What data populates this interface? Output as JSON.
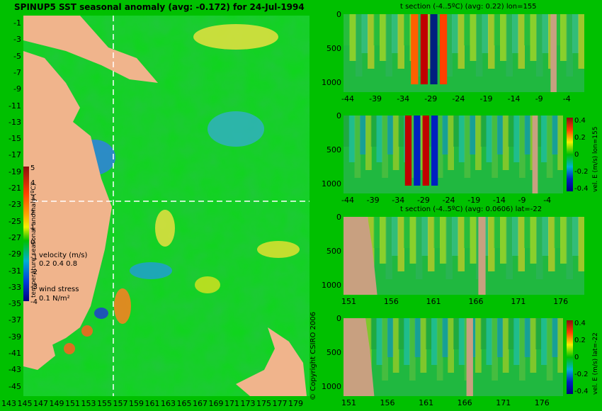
{
  "map": {
    "title": "SPINUP5 SST seasonal anomaly (avg: -0.172) for 24-Jul-1994",
    "lat_labels": [
      "-1",
      "-3",
      "-5",
      "-7",
      "-9",
      "-11",
      "-13",
      "-15",
      "-17",
      "-19",
      "-21",
      "-23",
      "-25",
      "-27",
      "-29",
      "-31",
      "-33",
      "-35",
      "-37",
      "-39",
      "-41",
      "-43",
      "-45"
    ],
    "lon_labels": [
      "143",
      "145",
      "147",
      "149",
      "151",
      "153",
      "155",
      "157",
      "159",
      "161",
      "163",
      "165",
      "167",
      "169",
      "171",
      "173",
      "175",
      "177",
      "179"
    ],
    "colorbar_ticks": [
      "5",
      "4",
      "3",
      "2",
      "1",
      "0",
      "-1",
      "-2",
      "-3",
      "-4"
    ],
    "colorbar_label": "temperature seasonal anomaly (ºC)",
    "velocity_label": "velocity (m/s)",
    "velocity_scale": "0.2 0.4 0.8",
    "wind_label": "wind stress",
    "wind_scale": "0.1 N/m²",
    "copyright": "© Copyright CSIRO 2006",
    "colors": {
      "land": "#f0b48c",
      "background": "#00c000",
      "crosshair": "#ffffff",
      "vector": "#ff00ff"
    }
  },
  "panels": [
    {
      "title": "t section (-4..5ºC) (avg: 0.22) lon=155",
      "xticks": [
        "-44",
        "-39",
        "-34",
        "-29",
        "-24",
        "-19",
        "-14",
        "-9",
        "-4"
      ],
      "yticks": [
        "0",
        "500",
        "1000"
      ]
    },
    {
      "title": "",
      "xticks": [
        "-44",
        "-39",
        "-34",
        "-29",
        "-24",
        "-19",
        "-14",
        "-9",
        "-4"
      ],
      "yticks": [
        "0",
        "500",
        "1000"
      ],
      "cb_ticks": [
        "0.4",
        "0.2",
        "0",
        "-0.2",
        "-0.4"
      ],
      "cb_label": "vel. E (m/s) lon=155"
    },
    {
      "title": "t section (-4..5ºC) (avg: 0.0606) lat=-22",
      "xticks": [
        "151",
        "156",
        "161",
        "166",
        "171",
        "176"
      ],
      "yticks": [
        "0",
        "500",
        "1000"
      ]
    },
    {
      "title": "",
      "xticks": [
        "151",
        "156",
        "161",
        "166",
        "171",
        "176"
      ],
      "yticks": [
        "0",
        "500",
        "1000"
      ],
      "cb_ticks": [
        "0.4",
        "0.2",
        "0",
        "-0.2",
        "-0.4"
      ],
      "cb_label": "vel. E (m/s) lat=-22"
    }
  ]
}
